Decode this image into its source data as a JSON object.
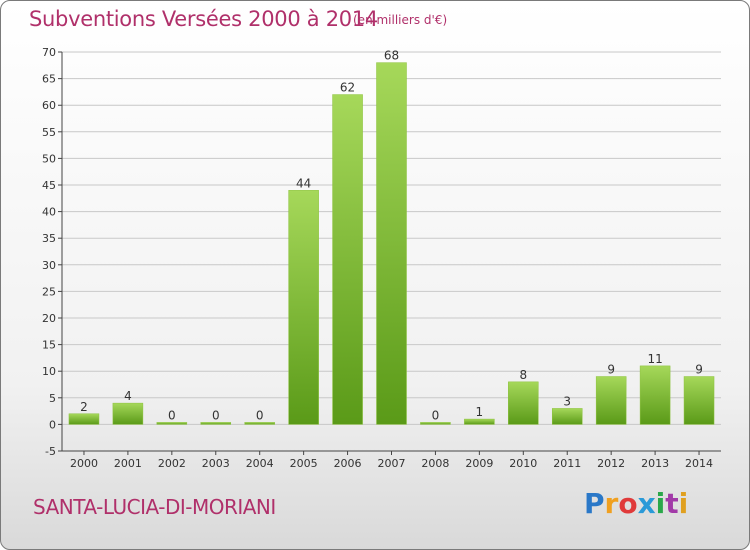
{
  "header": {
    "title": "Subventions Versées 2000 à 2014",
    "unit": "(en milliers d'€)"
  },
  "footer": {
    "commune": "SANTA-LUCIA-DI-MORIANI",
    "logo_letters": [
      "P",
      "r",
      "o",
      "x",
      "i",
      "t",
      "i"
    ],
    "logo_colors": [
      "#2a78c8",
      "#f0a020",
      "#e03a3a",
      "#2a9ad8",
      "#2aa84a",
      "#a23aa8",
      "#e0a020"
    ]
  },
  "colors": {
    "bar_top": "#a6d85a",
    "bar_bottom": "#5a9a18",
    "grid": "#c8c8c8",
    "axis": "#444444",
    "accent": "#b0306a"
  },
  "chart_data": {
    "type": "bar",
    "categories": [
      "2000",
      "2001",
      "2002",
      "2003",
      "2004",
      "2005",
      "2006",
      "2007",
      "2008",
      "2009",
      "2010",
      "2011",
      "2012",
      "2013",
      "2014"
    ],
    "values": [
      2,
      4,
      0,
      0,
      0,
      44,
      62,
      68,
      0,
      1,
      8,
      3,
      9,
      11,
      9
    ],
    "title": "Subventions Versées 2000 à 2014",
    "xlabel": "",
    "ylabel": "",
    "ylim": [
      -5,
      70
    ],
    "yticks": [
      -5,
      0,
      5,
      10,
      15,
      20,
      25,
      30,
      35,
      40,
      45,
      50,
      55,
      60,
      65,
      70
    ],
    "grid": true,
    "legend": "none"
  }
}
